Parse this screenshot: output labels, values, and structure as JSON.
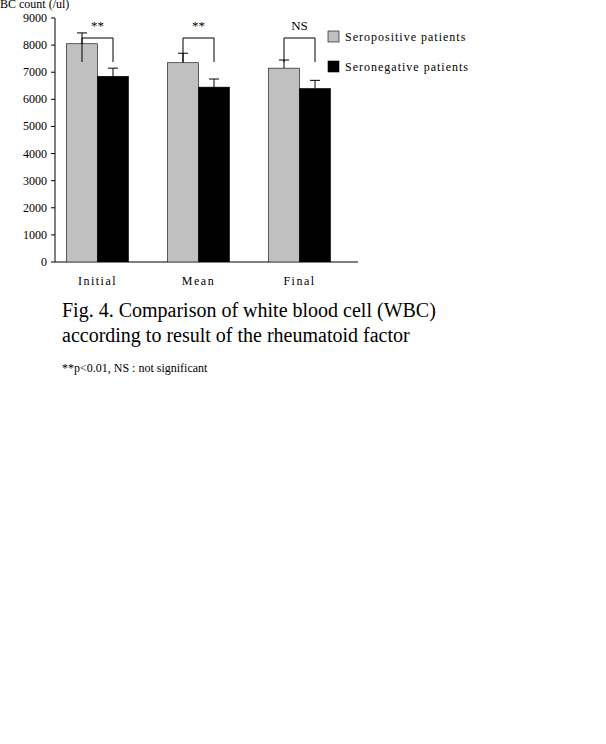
{
  "chart_data": {
    "type": "bar",
    "title": [
      "Fig. 4. Comparison of white blood cell  (WBC)",
      "according to result of the rheumatoid factor"
    ],
    "footnote": "**p<0.01, NS : not significant",
    "y_label": "BC count (/ul)",
    "categories": [
      "Initial",
      "Mean",
      "Final"
    ],
    "series": [
      {
        "name": "Seropositive patients",
        "color": "#c0c0c0",
        "values": [
          8050,
          7350,
          7150
        ],
        "errors": [
          400,
          350,
          300
        ]
      },
      {
        "name": "Seronegative patients",
        "color": "#000000",
        "values": [
          6850,
          6450,
          6400
        ],
        "errors": [
          300,
          300,
          300
        ]
      }
    ],
    "annotations": [
      "**",
      "**",
      "NS"
    ],
    "ylim": [
      0,
      9000
    ],
    "yticks": [
      0,
      1000,
      2000,
      3000,
      4000,
      5000,
      6000,
      7000,
      8000,
      9000
    ],
    "grid": false,
    "legend": "upper right"
  }
}
